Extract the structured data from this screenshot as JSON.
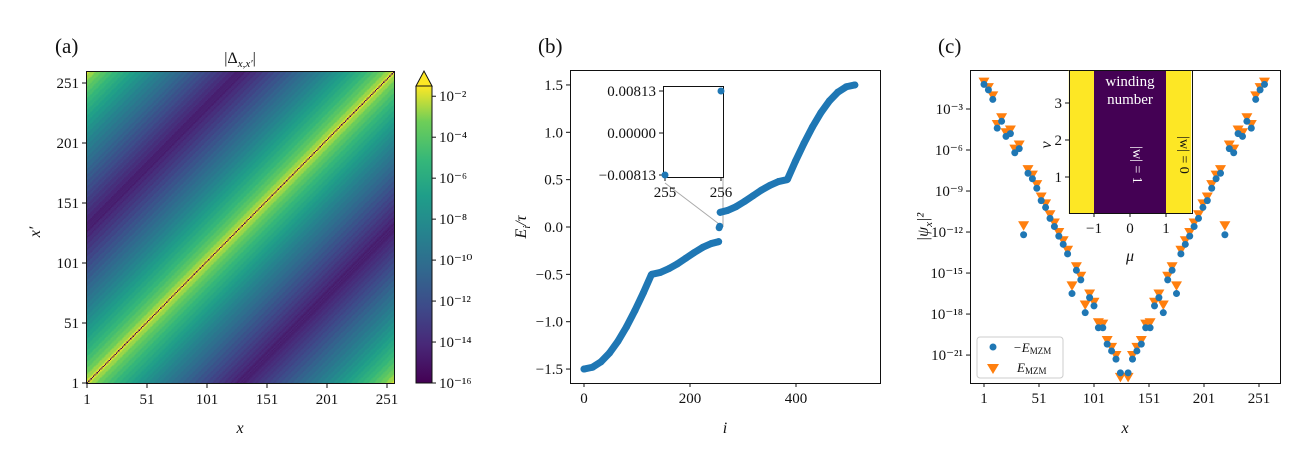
{
  "chart_data": [
    {
      "type": "heatmap",
      "panel_label": "(a)",
      "title": "|Δ",
      "title_sub": "x,x′",
      "title_end": "|",
      "xlabel": "x",
      "ylabel": "x′",
      "xticks": [
        1,
        51,
        101,
        151,
        201,
        251
      ],
      "yticks": [
        1,
        51,
        101,
        151,
        201,
        251
      ],
      "xlim": [
        1,
        256
      ],
      "ylim": [
        1,
        256
      ],
      "colormap": "viridis",
      "color_scale": "log",
      "colorbar": {
        "range_log10": [
          -16,
          -2
        ],
        "extend": "max",
        "ticks": [
          "10⁻²",
          "10⁻⁴",
          "10⁻⁶",
          "10⁻⁸",
          "10⁻¹⁰",
          "10⁻¹²",
          "10⁻¹⁴",
          "10⁻¹⁶"
        ],
        "tick_log10": [
          -2,
          -4,
          -6,
          -8,
          -10,
          -12,
          -14,
          -16
        ]
      }
    },
    {
      "type": "scatter",
      "panel_label": "(b)",
      "xlabel": "i",
      "ylabel": "E",
      "ylabel_sub": "i",
      "ylabel_end": "/τ",
      "xlim": [
        -25,
        535
      ],
      "ylim": [
        -1.65,
        1.65
      ],
      "xticks": [
        "0",
        "200",
        "400"
      ],
      "xtick_values": [
        0,
        200,
        400
      ],
      "yticks": [
        "1.5",
        "1.0",
        "0.5",
        "0.0",
        "−0.5",
        "−1.0",
        "−1.5"
      ],
      "ytick_values": [
        1.5,
        1.0,
        0.5,
        0.0,
        -0.5,
        -1.0,
        -1.5
      ],
      "color": "#1f77b4",
      "segments": [
        {
          "i": [
            0,
            16,
            32,
            48,
            64,
            80,
            96,
            112,
            127,
            128,
            144,
            160,
            176,
            192,
            208,
            224,
            240,
            254
          ],
          "E": [
            -1.5,
            -1.481,
            -1.424,
            -1.331,
            -1.207,
            -1.056,
            -0.883,
            -0.695,
            -0.505,
            -0.5,
            -0.48,
            -0.44,
            -0.39,
            -0.33,
            -0.27,
            -0.215,
            -0.175,
            -0.155
          ]
        },
        {
          "i": [
            257,
            271,
            287,
            303,
            319,
            335,
            351,
            367,
            383,
            384,
            399,
            415,
            431,
            447,
            463,
            479,
            495,
            511
          ],
          "E": [
            0.155,
            0.175,
            0.215,
            0.27,
            0.33,
            0.39,
            0.44,
            0.48,
            0.5,
            0.505,
            0.695,
            0.883,
            1.056,
            1.207,
            1.331,
            1.424,
            1.481,
            1.5
          ]
        }
      ],
      "zero_modes": {
        "i": [
          255,
          256
        ],
        "E": [
          -0.00813,
          0.00813
        ]
      },
      "inset": {
        "xlim": [
          255,
          256
        ],
        "ylim": [
          -0.00813,
          0.00813
        ],
        "xticks": [
          "255",
          "256"
        ],
        "yticks": [
          "0.00813",
          "0.00000",
          "−0.00813"
        ],
        "ytick_values": [
          0.00813,
          0,
          -0.00813
        ]
      }
    },
    {
      "type": "scatter",
      "panel_label": "(c)",
      "xlabel": "x",
      "ylabel": "|ψ",
      "ylabel_sub": "x",
      "ylabel_end": "|²",
      "yscale": "log",
      "xticks": [
        1,
        51,
        101,
        151,
        201,
        251
      ],
      "yticks": [
        "10⁻³",
        "10⁻⁶",
        "10⁻⁹",
        "10⁻¹²",
        "10⁻¹⁵",
        "10⁻¹⁸",
        "10⁻²¹"
      ],
      "ytick_log10": [
        -3,
        -6,
        -9,
        -12,
        -15,
        -18,
        -21
      ],
      "legend": {
        "placement": "lower-left"
      },
      "series": [
        {
          "name": "−E",
          "name_sub": "MZM",
          "marker": "circle",
          "color": "#1f77b4",
          "x": [
            1,
            5,
            9,
            13,
            17,
            21,
            25,
            29,
            33,
            37,
            41,
            45,
            49,
            53,
            57,
            61,
            65,
            69,
            73,
            77,
            81,
            85,
            89,
            93,
            97,
            101,
            105,
            109,
            113,
            117,
            121,
            125
          ],
          "log10_y": [
            -1.2,
            -1.6,
            -2.3,
            -4.4,
            -3.9,
            -5.0,
            -4.8,
            -6.2,
            -5.9,
            -12.2,
            -7.7,
            -8.1,
            -8.8,
            -9.7,
            -10.2,
            -11.0,
            -11.6,
            -12.3,
            -12.9,
            -13.6,
            -16.5,
            -14.8,
            -15.5,
            -17.9,
            -16.8,
            -17.4,
            -19.0,
            -19.0,
            -20.2,
            -20.7,
            -21.3,
            -22.3
          ]
        },
        {
          "name": "E",
          "name_sub": "MZM",
          "marker": "triangle-down",
          "color": "#ff7f0e",
          "x": [
            1,
            5,
            9,
            13,
            17,
            21,
            25,
            29,
            33,
            37,
            41,
            45,
            49,
            53,
            57,
            61,
            65,
            69,
            73,
            77,
            81,
            85,
            89,
            93,
            97,
            101,
            105,
            109,
            113,
            117,
            121,
            125
          ],
          "log10_y": [
            -1.0,
            -1.4,
            -2.0,
            -4.1,
            -3.6,
            -4.7,
            -4.5,
            -5.9,
            -5.6,
            -11.5,
            -7.4,
            -7.8,
            -8.5,
            -9.4,
            -9.9,
            -10.7,
            -11.3,
            -12.0,
            -12.6,
            -13.3,
            -15.9,
            -14.5,
            -15.2,
            -17.3,
            -16.5,
            -17.1,
            -18.6,
            -18.7,
            -19.9,
            -20.4,
            -21.0,
            -22.6
          ]
        }
      ],
      "symmetry": "mirror about x = 128.5",
      "inset": {
        "xlabel": "μ",
        "ylabel": "ν",
        "xticks": [
          "−1",
          "0",
          "1"
        ],
        "xtick_values": [
          -1,
          0,
          1
        ],
        "yticks": [
          "3",
          "2",
          "1"
        ],
        "ytick_values": [
          3,
          2,
          1
        ],
        "xlim": [
          -1.7,
          1.7
        ],
        "ylim": [
          0,
          3.9
        ],
        "title": "winding number",
        "title_line1": "winding",
        "title_line2": "number",
        "regions": [
          {
            "mu_range": [
              -1.7,
              -1
            ],
            "label": "",
            "color": "#fde725"
          },
          {
            "mu_range": [
              -1,
              1
            ],
            "label": "|w| = 1",
            "color": "#440154"
          },
          {
            "mu_range": [
              1,
              1.7
            ],
            "label": "|w| = 0",
            "color": "#fde725"
          }
        ]
      }
    }
  ]
}
